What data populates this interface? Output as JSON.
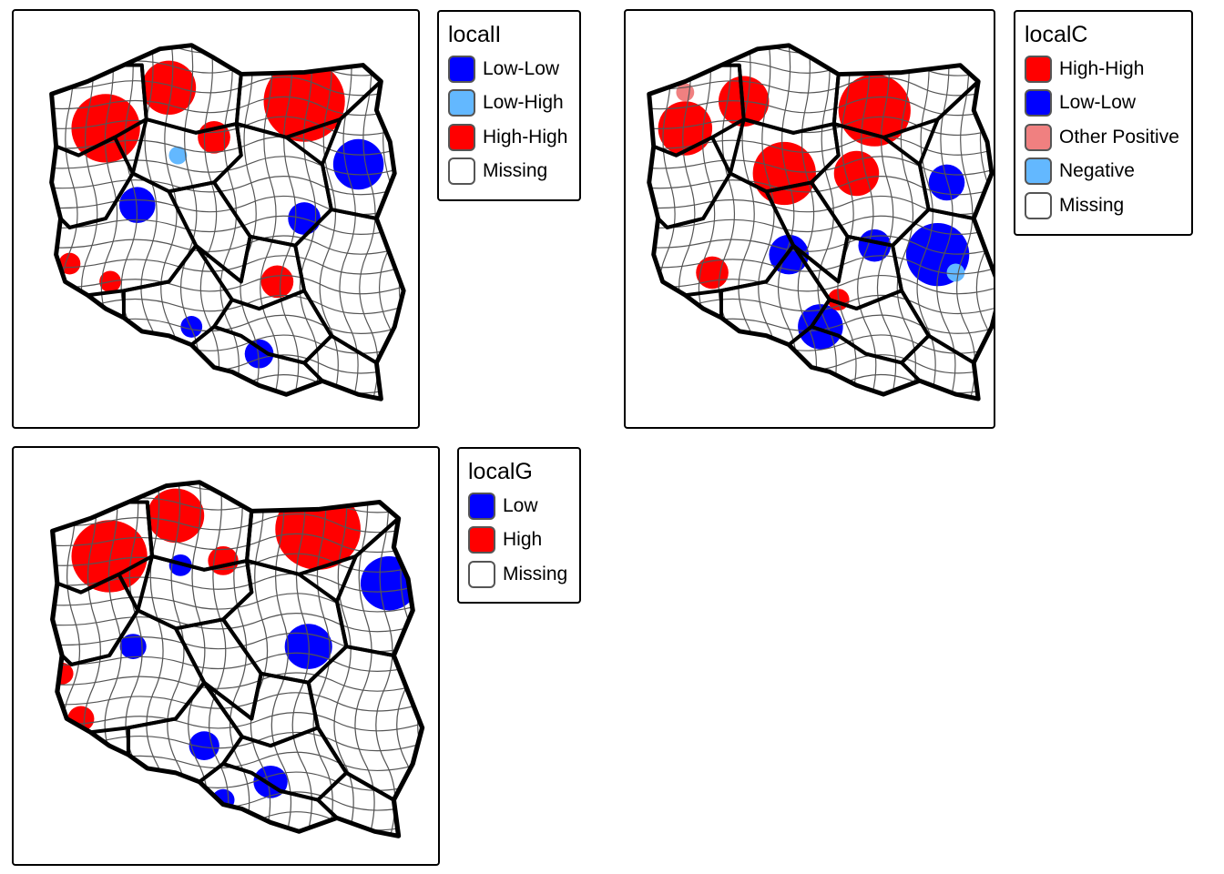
{
  "colors": {
    "low_low": "#0000ff",
    "low_high": "#63b8ff",
    "high_high": "#ff0000",
    "other_positive": "#f08080",
    "negative": "#63b8ff",
    "low": "#0000ff",
    "high": "#ff0000",
    "missing": "#ffffff",
    "voivodeship_border": "#000000",
    "county_border": "#555555"
  },
  "maps": [
    {
      "id": "localI",
      "legend_title": "localI",
      "legend": [
        {
          "label": "Low-Low",
          "color": "#0000ff"
        },
        {
          "label": "Low-High",
          "color": "#63b8ff"
        },
        {
          "label": "High-High",
          "color": "#ff0000"
        },
        {
          "label": "Missing",
          "color": "#ffffff"
        }
      ]
    },
    {
      "id": "localC",
      "legend_title": "localC",
      "legend": [
        {
          "label": "High-High",
          "color": "#ff0000"
        },
        {
          "label": "Low-Low",
          "color": "#0000ff"
        },
        {
          "label": "Other Positive",
          "color": "#f08080"
        },
        {
          "label": "Negative",
          "color": "#63b8ff"
        },
        {
          "label": "Missing",
          "color": "#ffffff"
        }
      ]
    },
    {
      "id": "localG",
      "legend_title": "localG",
      "legend": [
        {
          "label": "Low",
          "color": "#0000ff"
        },
        {
          "label": "High",
          "color": "#ff0000"
        },
        {
          "label": "Missing",
          "color": "#ffffff"
        }
      ]
    }
  ]
}
